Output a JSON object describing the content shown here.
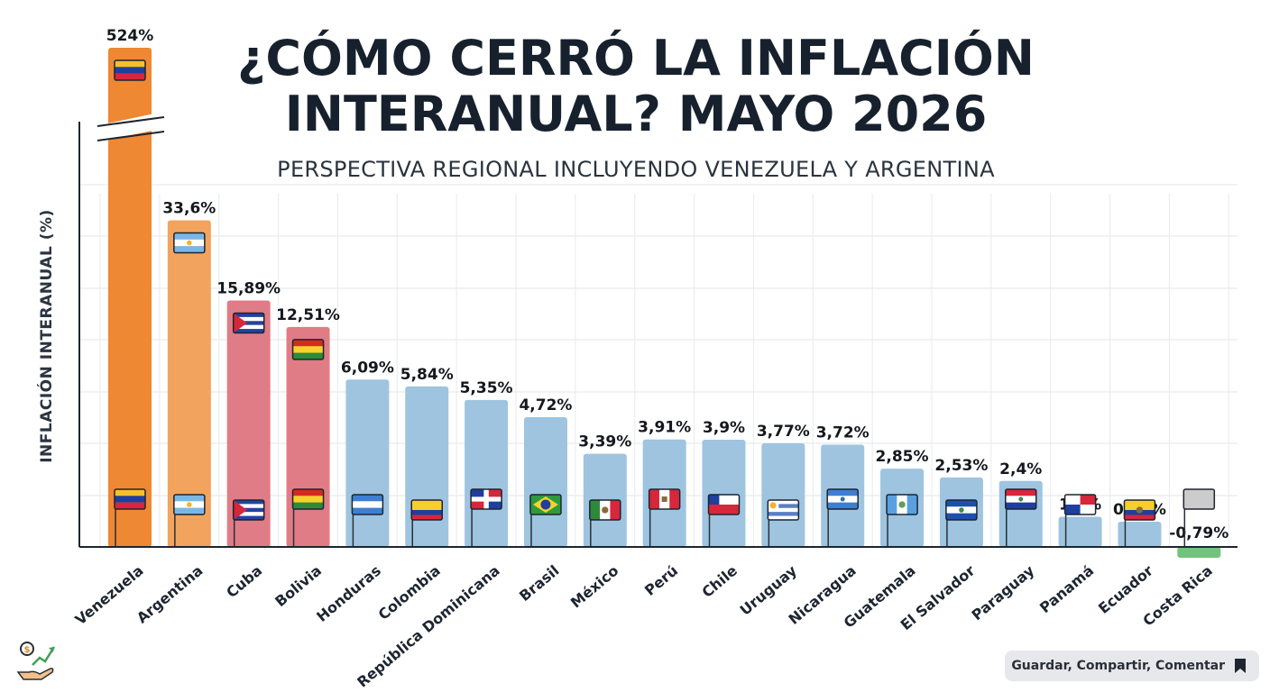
{
  "chart_data": {
    "type": "bar",
    "title": "¿CÓMO CERRÓ LA INFLACIÓN INTERANUAL? MAYO 2026",
    "subtitle": "PERSPECTIVA REGIONAL INCLUYENDO VENEZUELA Y ARGENTINA",
    "ylabel": "INFLACIÓN INTERANUAL (%)",
    "xlabel": "",
    "axis_break": true,
    "grid": true,
    "categories": [
      "Venezuela",
      "Argentina",
      "Cuba",
      "Bolivia",
      "Honduras",
      "Colombia",
      "República Dominicana",
      "Brasil",
      "México",
      "Perú",
      "Chile",
      "Uruguay",
      "Nicaragua",
      "Guatemala",
      "El Salvador",
      "Paraguay",
      "Panamá",
      "Ecuador",
      "Costa Rica"
    ],
    "values": [
      524,
      33.6,
      15.89,
      12.51,
      6.09,
      5.84,
      5.35,
      4.72,
      3.39,
      3.91,
      3.9,
      3.77,
      3.72,
      2.85,
      2.53,
      2.4,
      1.1,
      0.92,
      -0.79
    ],
    "value_labels": [
      "524%",
      "33,6%",
      "15,89%",
      "12,51%",
      "6,09%",
      "5,84%",
      "5,35%",
      "4,72%",
      "3,39%",
      "3,91%",
      "3,9%",
      "3,77%",
      "3,72%",
      "2,85%",
      "2,53%",
      "2,4%",
      "1,1%",
      "0,92%",
      "-0,79%"
    ],
    "bar_colors": [
      "#ee8833",
      "#f2a45e",
      "#e07c86",
      "#e07c86",
      "#9ec4e0",
      "#9ec4e0",
      "#9ec4e0",
      "#9ec4e0",
      "#9ec4e0",
      "#9ec4e0",
      "#9ec4e0",
      "#9ec4e0",
      "#9ec4e0",
      "#9ec4e0",
      "#9ec4e0",
      "#9ec4e0",
      "#9ec4e0",
      "#9ec4e0",
      "#72c47c"
    ],
    "flags": [
      "venezuela-flag",
      "argentina-flag",
      "cuba-flag",
      "bolivia-flag",
      "honduras-flag",
      "colombia-flag",
      "dominican-republic-flag",
      "brazil-flag",
      "mexico-flag",
      "peru-flag",
      "chile-flag",
      "uruguay-flag",
      "nicaragua-flag",
      "guatemala-flag",
      "el-salvador-flag",
      "paraguay-flag",
      "panama-flag",
      "ecuador-flag",
      "costa-rica-flag"
    ]
  },
  "footer": {
    "action_label": "Guardar, Compartir, Comentar",
    "icon": "bookmark-icon"
  },
  "logo": {
    "icon": "finance-growth-icon"
  },
  "colors": {
    "title": "#17212e",
    "high_inflation": "#ee8833",
    "mid_inflation": "#e07c86",
    "normal_inflation": "#9ec4e0",
    "deflation": "#72c47c"
  }
}
